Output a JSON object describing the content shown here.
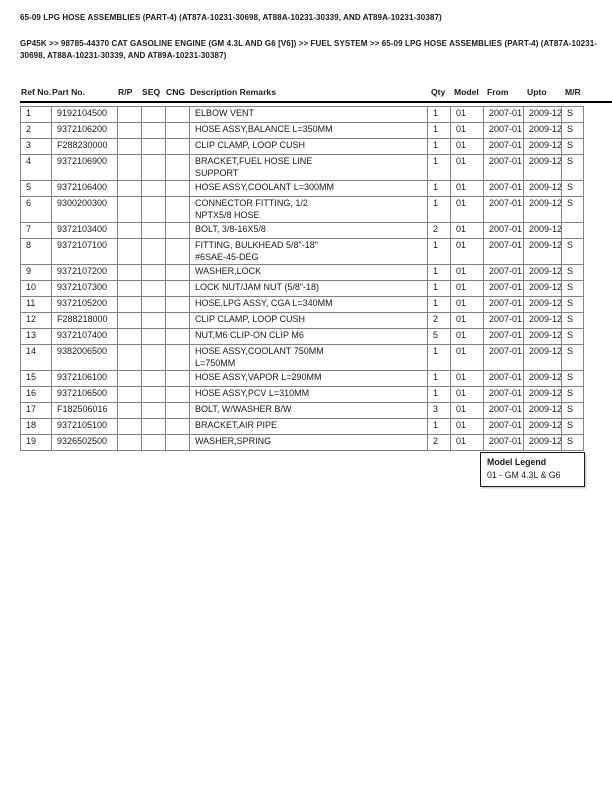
{
  "page": {
    "title": "65-09 LPG HOSE ASSEMBLIES (PART-4) (AT87A-10231-30698, AT88A-10231-30339, AND AT89A-10231-30387)",
    "breadcrumb": "GP45K >> 98785-44370 CAT GASOLINE ENGINE (GM 4.3L AND G6 [V6]) >> FUEL SYSTEM >> 65-09 LPG HOSE ASSEMBLIES (PART-4) (AT87A-10231-30698, AT88A-10231-30339, AND AT89A-10231-30387)"
  },
  "table": {
    "columns": [
      "Ref No.",
      "Part No.",
      "R/P",
      "SEQ",
      "CNG",
      "Description Remarks",
      "Qty",
      "Model",
      "From",
      "Upto",
      "M/R"
    ],
    "rows": [
      {
        "ref": "1",
        "part": "9192104500",
        "rp": "",
        "seq": "",
        "cng": "",
        "desc": "ELBOW VENT",
        "qty": "1",
        "model": "01",
        "from": "2007-01",
        "upto": "2009-12",
        "mr": "S"
      },
      {
        "ref": "2",
        "part": "9372106200",
        "rp": "",
        "seq": "",
        "cng": "",
        "desc": "HOSE ASSY,BALANCE L=350MM",
        "qty": "1",
        "model": "01",
        "from": "2007-01",
        "upto": "2009-12",
        "mr": "S"
      },
      {
        "ref": "3",
        "part": "F288230000",
        "rp": "",
        "seq": "",
        "cng": "",
        "desc": "CLIP CLAMP, LOOP CUSH",
        "qty": "1",
        "model": "01",
        "from": "2007-01",
        "upto": "2009-12",
        "mr": "S"
      },
      {
        "ref": "4",
        "part": "9372106900",
        "rp": "",
        "seq": "",
        "cng": "",
        "desc": "BRACKET,FUEL HOSE LINE\nSUPPORT",
        "qty": "1",
        "model": "01",
        "from": "2007-01",
        "upto": "2009-12",
        "mr": "S"
      },
      {
        "ref": "5",
        "part": "9372106400",
        "rp": "",
        "seq": "",
        "cng": "",
        "desc": "HOSE ASSY,COOLANT L=300MM",
        "qty": "1",
        "model": "01",
        "from": "2007-01",
        "upto": "2009-12",
        "mr": "S"
      },
      {
        "ref": "6",
        "part": "9300200300",
        "rp": "",
        "seq": "",
        "cng": "",
        "desc": "CONNECTOR FITTING, 1/2\nNPTX5/8 HOSE",
        "qty": "1",
        "model": "01",
        "from": "2007-01",
        "upto": "2009-12",
        "mr": "S"
      },
      {
        "ref": "7",
        "part": "9372103400",
        "rp": "",
        "seq": "",
        "cng": "",
        "desc": "BOLT, 3/8-16X5/8",
        "qty": "2",
        "model": "01",
        "from": "2007-01",
        "upto": "2009-12",
        "mr": ""
      },
      {
        "ref": "8",
        "part": "9372107100",
        "rp": "",
        "seq": "",
        "cng": "",
        "desc": "FITTING, BULKHEAD 5/8\"-18\"\n#6SAE-45-DEG",
        "qty": "1",
        "model": "01",
        "from": "2007-01",
        "upto": "2009-12",
        "mr": "S"
      },
      {
        "ref": "9",
        "part": "9372107200",
        "rp": "",
        "seq": "",
        "cng": "",
        "desc": "WASHER,LOCK",
        "qty": "1",
        "model": "01",
        "from": "2007-01",
        "upto": "2009-12",
        "mr": "S"
      },
      {
        "ref": "10",
        "part": "9372107300",
        "rp": "",
        "seq": "",
        "cng": "",
        "desc": "LOCK NUT/JAM NUT (5/8\"-18)",
        "qty": "1",
        "model": "01",
        "from": "2007-01",
        "upto": "2009-12",
        "mr": "S"
      },
      {
        "ref": "11",
        "part": "9372105200",
        "rp": "",
        "seq": "",
        "cng": "",
        "desc": "HOSE,LPG ASSY, CGA L=340MM",
        "qty": "1",
        "model": "01",
        "from": "2007-01",
        "upto": "2009-12",
        "mr": "S"
      },
      {
        "ref": "12",
        "part": "F288218000",
        "rp": "",
        "seq": "",
        "cng": "",
        "desc": "CLIP CLAMP, LOOP CUSH",
        "qty": "2",
        "model": "01",
        "from": "2007-01",
        "upto": "2009-12",
        "mr": "S"
      },
      {
        "ref": "13",
        "part": "9372107400",
        "rp": "",
        "seq": "",
        "cng": "",
        "desc": "NUT,M6 CLIP-ON CLIP M6",
        "qty": "5",
        "model": "01",
        "from": "2007-01",
        "upto": "2009-12",
        "mr": "S"
      },
      {
        "ref": "14",
        "part": "9382006500",
        "rp": "",
        "seq": "",
        "cng": "",
        "desc": "HOSE ASSY,COOLANT 750MM\nL=750MM",
        "qty": "1",
        "model": "01",
        "from": "2007-01",
        "upto": "2009-12",
        "mr": "S"
      },
      {
        "ref": "15",
        "part": "9372106100",
        "rp": "",
        "seq": "",
        "cng": "",
        "desc": "HOSE ASSY,VAPOR L=290MM",
        "qty": "1",
        "model": "01",
        "from": "2007-01",
        "upto": "2009-12",
        "mr": "S"
      },
      {
        "ref": "16",
        "part": "9372106500",
        "rp": "",
        "seq": "",
        "cng": "",
        "desc": "HOSE ASSY,PCV L=310MM",
        "qty": "1",
        "model": "01",
        "from": "2007-01",
        "upto": "2009-12",
        "mr": "S"
      },
      {
        "ref": "17",
        "part": "F182506016",
        "rp": "",
        "seq": "",
        "cng": "",
        "desc": "BOLT, W/WASHER B/W",
        "qty": "3",
        "model": "01",
        "from": "2007-01",
        "upto": "2009-12",
        "mr": "S"
      },
      {
        "ref": "18",
        "part": "9372105100",
        "rp": "",
        "seq": "",
        "cng": "",
        "desc": "BRACKET,AIR PIPE",
        "qty": "1",
        "model": "01",
        "from": "2007-01",
        "upto": "2009-12",
        "mr": "S"
      },
      {
        "ref": "19",
        "part": "9326502500",
        "rp": "",
        "seq": "",
        "cng": "",
        "desc": "WASHER,SPRING",
        "qty": "2",
        "model": "01",
        "from": "2007-01",
        "upto": "2009-12",
        "mr": "S"
      }
    ]
  },
  "legend": {
    "title": "Model Legend",
    "entries": [
      "01 - GM 4.3L & G6"
    ]
  },
  "colors": {
    "header_rule": "#000000",
    "cell_border": "#828282",
    "text": "#1a1a1a"
  }
}
